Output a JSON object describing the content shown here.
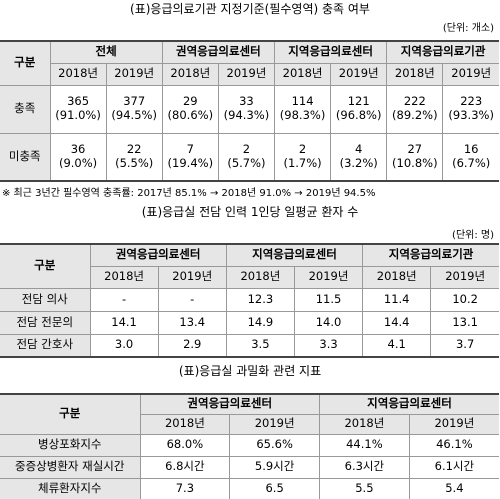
{
  "tables": [
    {
      "title": "(표)응급의료기관 지정기준(필수영역) 충족 여부",
      "unit": "(단위: 개소)",
      "header": [
        "구분",
        "전체",
        "권역응급의료센터",
        "지역응급의료센터",
        "지역응급의료기관"
      ],
      "years": [
        "2018년",
        "2019년",
        "2018년",
        "2019년",
        "2018년",
        "2019년",
        "2018년",
        "2019년"
      ],
      "rows": [
        {
          "label": "충족",
          "cells": [
            [
              "365",
              "(91.0%)"
            ],
            [
              "377",
              "(94.5%)"
            ],
            [
              "29",
              "(80.6%)"
            ],
            [
              "33",
              "(94.3%)"
            ],
            [
              "114",
              "(98.3%)"
            ],
            [
              "121",
              "(96.8%)"
            ],
            [
              "222",
              "(89.2%)"
            ],
            [
              "223",
              "(93.3%)"
            ]
          ]
        },
        {
          "label": "미충족",
          "cells": [
            [
              "36",
              "(9.0%)"
            ],
            [
              "22",
              "(5.5%)"
            ],
            [
              "7",
              "(19.4%)"
            ],
            [
              "2",
              "(5.7%)"
            ],
            [
              "2",
              "(1.7%)"
            ],
            [
              "4",
              "(3.2%)"
            ],
            [
              "27",
              "(10.8%)"
            ],
            [
              "16",
              "(6.7%)"
            ]
          ]
        }
      ],
      "note": "※ 최근 3년간 필수영역 충족률: 2017년 85.1% → 2018년 91.0% → 2019년 94.5%"
    },
    {
      "title": "(표)응급실 전담 인력 1인당 일평균 환자 수",
      "unit": "(단위: 명)",
      "header": [
        "구분",
        "권역응급의료센터",
        "지역응급의료센터",
        "지역응급의료기관"
      ],
      "years": [
        "2018년",
        "2019년",
        "2018년",
        "2019년",
        "2018년",
        "2019년"
      ],
      "rows": [
        {
          "label": "전담 의사",
          "cells": [
            "-",
            "-",
            "12.3",
            "11.5",
            "11.4",
            "10.2"
          ]
        },
        {
          "label": "전담 전문의",
          "cells": [
            "14.1",
            "13.4",
            "14.9",
            "14.0",
            "14.4",
            "13.1"
          ]
        },
        {
          "label": "전담 간호사",
          "cells": [
            "3.0",
            "2.9",
            "3.5",
            "3.3",
            "4.1",
            "3.7"
          ]
        }
      ]
    },
    {
      "title": "(표)응급실 과밀화 관련 지표",
      "header": [
        "구분",
        "권역응급의료센터",
        "지역응급의료센터"
      ],
      "years": [
        "2018년",
        "2019년",
        "2018년",
        "2019년"
      ],
      "rows": [
        {
          "label": "병상포화지수",
          "cells": [
            "68.0%",
            "65.6%",
            "44.1%",
            "46.1%"
          ]
        },
        {
          "label": "중증상병환자 재실시간",
          "cells": [
            "6.8시간",
            "5.9시간",
            "6.3시간",
            "6.1시간"
          ]
        },
        {
          "label": "체류환자지수",
          "cells": [
            "7.3",
            "6.5",
            "5.5",
            "5.4"
          ]
        }
      ]
    }
  ]
}
